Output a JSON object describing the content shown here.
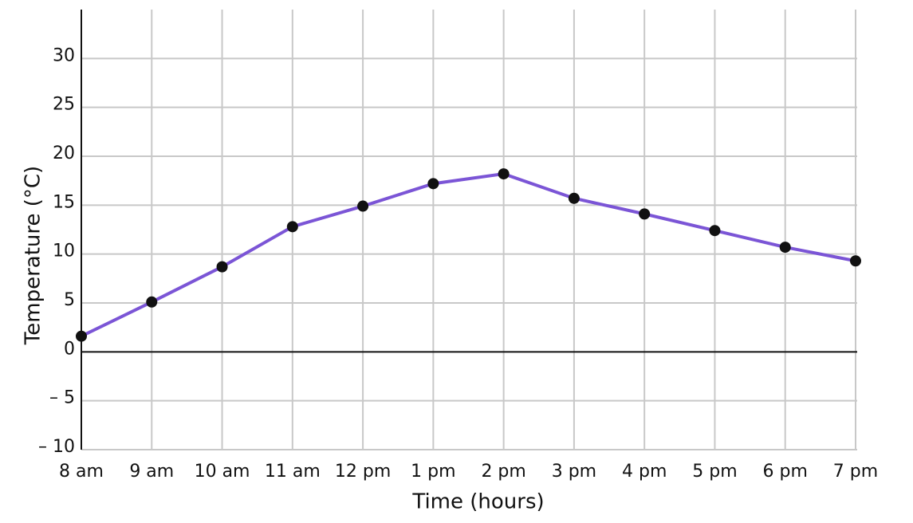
{
  "chart_data": {
    "type": "line",
    "x_label": "Time (hours)",
    "y_label": "Temperature (°C)",
    "categories": [
      "8 am",
      "9 am",
      "10 am",
      "11 am",
      "12 pm",
      "1 pm",
      "2 pm",
      "3 pm",
      "4 pm",
      "5 pm",
      "6 pm",
      "7 pm"
    ],
    "series": [
      {
        "name": "Temperature",
        "color": "#7b55d6",
        "values": [
          1.6,
          5.1,
          8.7,
          12.8,
          14.9,
          17.2,
          18.2,
          15.7,
          14.1,
          12.4,
          10.7,
          9.3
        ]
      }
    ],
    "ylim": [
      -10,
      35
    ],
    "yticks": [
      {
        "value": -10,
        "label": "– 10"
      },
      {
        "value": -5,
        "label": "– 5"
      },
      0,
      5,
      10,
      15,
      20,
      25,
      30
    ],
    "grid": true
  }
}
